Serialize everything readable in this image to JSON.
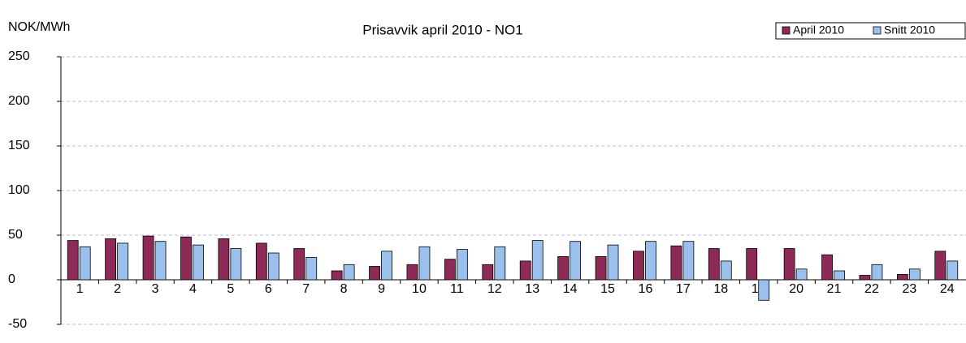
{
  "chart_data": {
    "type": "bar",
    "title": "Prisavvik april 2010 - NO1",
    "y_label": "NOK/MWh",
    "categories": [
      "1",
      "2",
      "3",
      "4",
      "5",
      "6",
      "7",
      "8",
      "9",
      "10",
      "11",
      "12",
      "13",
      "14",
      "15",
      "16",
      "17",
      "18",
      "19",
      "20",
      "21",
      "22",
      "23",
      "24"
    ],
    "series": [
      {
        "name": "April 2010",
        "color": "#8e2a57",
        "values": [
          44,
          46,
          49,
          48,
          46,
          41,
          35,
          10,
          15,
          17,
          23,
          17,
          21,
          26,
          26,
          32,
          38,
          35,
          35,
          35,
          28,
          5,
          6,
          32
        ]
      },
      {
        "name": "Snitt 2010",
        "color": "#9cc0ec",
        "values": [
          37,
          41,
          43,
          39,
          35,
          30,
          25,
          17,
          32,
          37,
          34,
          37,
          44,
          43,
          39,
          43,
          43,
          21,
          -23,
          12,
          10,
          17,
          12,
          21
        ]
      }
    ],
    "ylim": [
      -50,
      250
    ],
    "yticks": [
      -50,
      0,
      50,
      100,
      150,
      200,
      250
    ],
    "grid": true,
    "legend": "top-right"
  }
}
